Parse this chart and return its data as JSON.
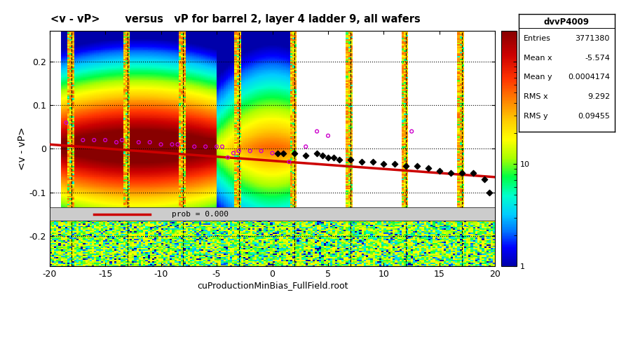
{
  "title": "<v - vP>       versus   vP for barrel 2, layer 4 ladder 9, all wafers",
  "xlabel": "cuProductionMinBias_FullField.root",
  "ylabel": "<v - vP>",
  "xlim": [
    -20,
    20
  ],
  "ylim_full": [
    -0.27,
    0.27
  ],
  "colorbar_label": "",
  "stats_title": "dvvP4009",
  "stats": {
    "Entries": "3771380",
    "Mean x": "-5.574",
    "Mean y": "0.0004174",
    "RMS x": "9.292",
    "RMS y": "0.09455"
  },
  "fit_line": {
    "x0": -20,
    "y0": 0.01,
    "x1": 20,
    "y1": -0.065,
    "color": "#cc0000"
  },
  "fit_label": "prob = 0.000",
  "dotted_lines_y": [
    0.1,
    0.0,
    -0.1,
    0.2,
    -0.2
  ],
  "dashed_lines_x": [
    -18,
    -13,
    -8,
    -3,
    2,
    7,
    12,
    17
  ],
  "background_color": "#ffffff",
  "legend_box_color": "#d0d0d0"
}
